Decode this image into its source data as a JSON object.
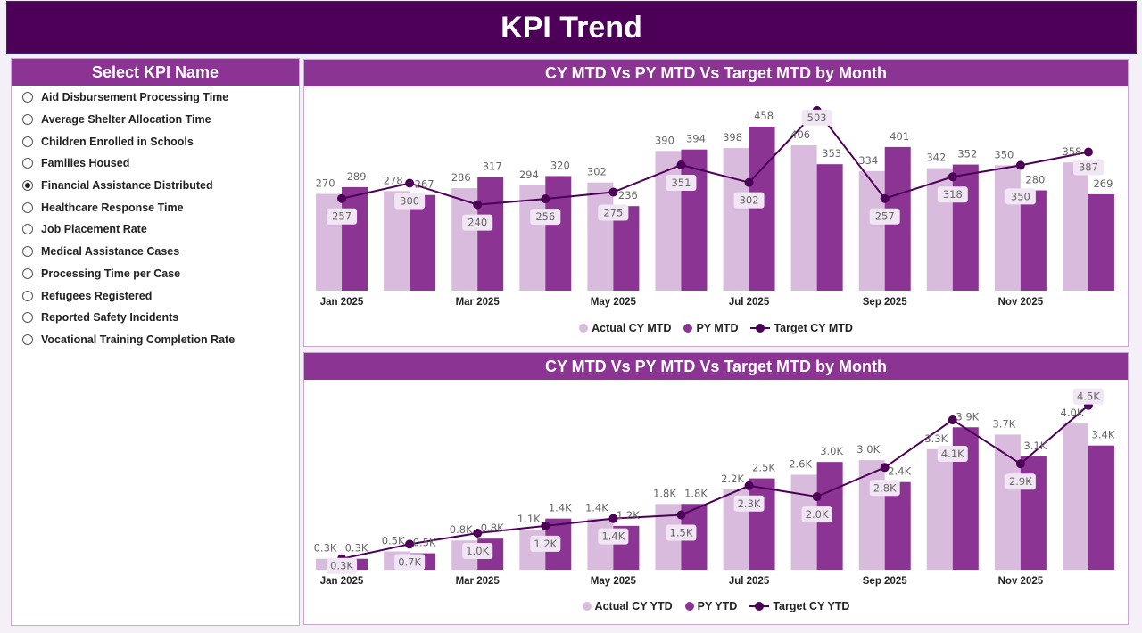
{
  "header": {
    "title": "KPI Trend"
  },
  "colors": {
    "header": "#4d0057",
    "panel_title": "#8b3494",
    "actual": "#d9bcdd",
    "py": "#8b3494",
    "target": "#4d0057"
  },
  "slicer": {
    "title": "Select KPI Name",
    "selected": "Financial Assistance Distributed",
    "items": [
      "Aid Disbursement Processing Time",
      "Average Shelter Allocation Time",
      "Children Enrolled in Schools",
      "Families Housed",
      "Financial Assistance Distributed",
      "Healthcare Response Time",
      "Job Placement Rate",
      "Medical Assistance Cases",
      "Processing Time per Case",
      "Refugees Registered",
      "Reported Safety Incidents",
      "Vocational Training Completion Rate"
    ]
  },
  "chart_data": [
    {
      "type": "bar",
      "title": "CY MTD Vs PY MTD Vs Target MTD by Month",
      "categories": [
        "Jan 2025",
        "Feb 2025",
        "Mar 2025",
        "Apr 2025",
        "May 2025",
        "Jun 2025",
        "Jul 2025",
        "Aug 2025",
        "Sep 2025",
        "Oct 2025",
        "Nov 2025",
        "Dec 2025"
      ],
      "tick_labels": [
        "Jan 2025",
        "",
        "Mar 2025",
        "",
        "May 2025",
        "",
        "Jul 2025",
        "",
        "Sep 2025",
        "",
        "Nov 2025",
        ""
      ],
      "ylim": [
        0,
        570
      ],
      "format": "int",
      "series": [
        {
          "name": "Actual CY MTD",
          "type": "bar",
          "values": [
            270,
            278,
            286,
            294,
            302,
            390,
            398,
            406,
            334,
            342,
            350,
            358
          ]
        },
        {
          "name": "PY MTD",
          "type": "bar",
          "values": [
            289,
            267,
            317,
            320,
            236,
            394,
            458,
            353,
            401,
            352,
            280,
            269
          ]
        },
        {
          "name": "Target CY MTD",
          "type": "line",
          "values": [
            257,
            300,
            240,
            256,
            275,
            351,
            302,
            503,
            257,
            318,
            350,
            387
          ]
        }
      ]
    },
    {
      "type": "bar",
      "title": "CY MTD Vs PY MTD Vs Target MTD by Month",
      "categories": [
        "Jan 2025",
        "Feb 2025",
        "Mar 2025",
        "Apr 2025",
        "May 2025",
        "Jun 2025",
        "Jul 2025",
        "Aug 2025",
        "Sep 2025",
        "Oct 2025",
        "Nov 2025",
        "Dec 2025"
      ],
      "tick_labels": [
        "Jan 2025",
        "",
        "Mar 2025",
        "",
        "May 2025",
        "",
        "Jul 2025",
        "",
        "Sep 2025",
        "",
        "Nov 2025",
        ""
      ],
      "ylim": [
        0,
        5200
      ],
      "format": "K",
      "series": [
        {
          "name": "Actual CY YTD",
          "type": "bar",
          "values": [
            300,
            500,
            800,
            1100,
            1400,
            1800,
            2200,
            2600,
            3000,
            3300,
            3700,
            4000
          ]
        },
        {
          "name": "PY YTD",
          "type": "bar",
          "values": [
            300,
            450,
            850,
            1400,
            1200,
            1800,
            2500,
            2950,
            2400,
            3900,
            3100,
            3400
          ]
        },
        {
          "name": "Target CY YTD",
          "type": "line",
          "values": [
            300,
            700,
            1000,
            1200,
            1400,
            1500,
            2300,
            2000,
            2800,
            4100,
            2900,
            4500
          ]
        }
      ]
    }
  ]
}
